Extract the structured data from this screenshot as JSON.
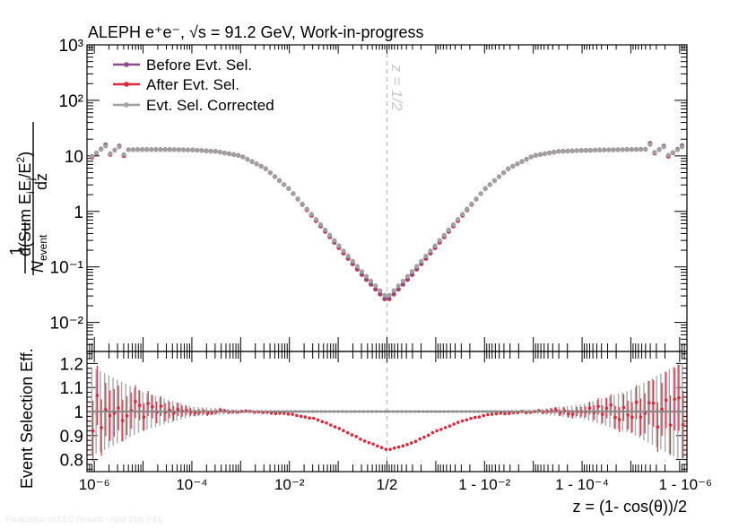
{
  "header": {
    "title": "ALEPH e⁺e⁻, √s = 91.2 GeV, Work-in-progress"
  },
  "footer_text": "Finalization of EEC Results - April 24th (HB)",
  "chart_data": [
    {
      "panel": "top",
      "type": "scatter",
      "title": "ALEPH e⁺e⁻, √s = 91.2 GeV, Work-in-progress",
      "ylabel_num": "d(Sum E_i E_j/E²)",
      "ylabel_den": "dz",
      "ylabel_norm": "1 / N_event",
      "yscale": "log",
      "ylim": [
        0.003,
        1000
      ],
      "y_ticks": [
        {
          "v": 1000,
          "label": "10³"
        },
        {
          "v": 100,
          "label": "10²"
        },
        {
          "v": 10,
          "label": "10"
        },
        {
          "v": 1,
          "label": "1"
        },
        {
          "v": 0.1,
          "label": "10⁻¹"
        },
        {
          "v": 0.01,
          "label": "10⁻²"
        }
      ],
      "grid": false,
      "legend_position": "top-left",
      "annotation": "z = 1/2",
      "colors": {
        "before": "#8a4a8a",
        "after": "#e0283a",
        "corrected": "#a0a0a0"
      },
      "series": [
        {
          "name": "Before Evt. Sel.",
          "color": "#8a4a8a"
        },
        {
          "name": "After Evt. Sel.",
          "color": "#e0283a"
        },
        {
          "name": "Evt. Sel. Corrected",
          "color": "#a0a0a0"
        }
      ],
      "curve_u_log10": [
        -6.0,
        -5.5,
        -5.0,
        -4.5,
        -4.0,
        -3.5,
        -3.0,
        -2.5,
        -2.0,
        -1.5,
        -1.0,
        -0.5,
        0.0,
        0.5,
        1.0,
        1.5,
        2.0,
        2.5,
        3.0,
        3.5,
        4.0,
        4.5,
        5.0,
        5.5,
        6.0
      ],
      "curve_y_corrected": [
        12.0,
        12.8,
        13.0,
        13.0,
        12.8,
        12.0,
        10.0,
        6.0,
        2.5,
        0.8,
        0.25,
        0.08,
        0.028,
        0.08,
        0.25,
        0.8,
        2.5,
        6.0,
        10.0,
        12.0,
        12.5,
        12.8,
        13.0,
        13.2,
        12.0
      ],
      "curve_y_after": [
        12.0,
        12.8,
        13.0,
        13.0,
        12.8,
        12.0,
        10.0,
        6.0,
        2.5,
        0.76,
        0.23,
        0.07,
        0.024,
        0.07,
        0.23,
        0.76,
        2.5,
        6.0,
        10.0,
        12.0,
        12.5,
        12.8,
        13.0,
        13.2,
        12.0
      ]
    },
    {
      "panel": "bottom",
      "type": "scatter",
      "ylabel": "Event Selection Eff.",
      "xlabel": "z = (1- cos(θ))/2",
      "ylim": [
        0.75,
        1.25
      ],
      "y_ticks": [
        {
          "v": 0.8,
          "label": "0.8"
        },
        {
          "v": 0.9,
          "label": "0.9"
        },
        {
          "v": 1.0,
          "label": "1"
        },
        {
          "v": 1.1,
          "label": "1.1"
        },
        {
          "v": 1.2,
          "label": "1.2"
        }
      ],
      "x_ticks": [
        {
          "u": -6,
          "label": "10⁻⁶"
        },
        {
          "u": -4,
          "label": "10⁻⁴"
        },
        {
          "u": -2,
          "label": "10⁻²"
        },
        {
          "u": 0,
          "label": "1/2"
        },
        {
          "u": 2,
          "label": "1 - 10⁻²"
        },
        {
          "u": 4,
          "label": "1 - 10⁻⁴"
        },
        {
          "u": 6,
          "label": "1 - 10⁻⁶"
        }
      ],
      "reference_line": 1.0,
      "eff_u_log10": [
        -6.0,
        -5.0,
        -4.0,
        -3.0,
        -2.5,
        -2.0,
        -1.5,
        -1.0,
        -0.5,
        0.0,
        0.5,
        1.0,
        1.5,
        2.0,
        2.5,
        3.0,
        4.0,
        5.0,
        6.0
      ],
      "eff_after": [
        1.0,
        1.0,
        1.0,
        1.0,
        0.995,
        0.99,
        0.97,
        0.93,
        0.88,
        0.84,
        0.87,
        0.92,
        0.96,
        0.985,
        0.995,
        1.0,
        1.0,
        1.0,
        1.0
      ],
      "err_u_log10": [
        -6.0,
        -5.0,
        -4.0,
        -3.0,
        -2.0,
        0.0,
        2.0,
        3.0,
        4.0,
        5.0,
        6.0
      ],
      "err_halfwidth": [
        0.18,
        0.08,
        0.02,
        0.008,
        0.004,
        0.003,
        0.004,
        0.008,
        0.03,
        0.09,
        0.2
      ],
      "corrected_value": 1.0
    }
  ]
}
